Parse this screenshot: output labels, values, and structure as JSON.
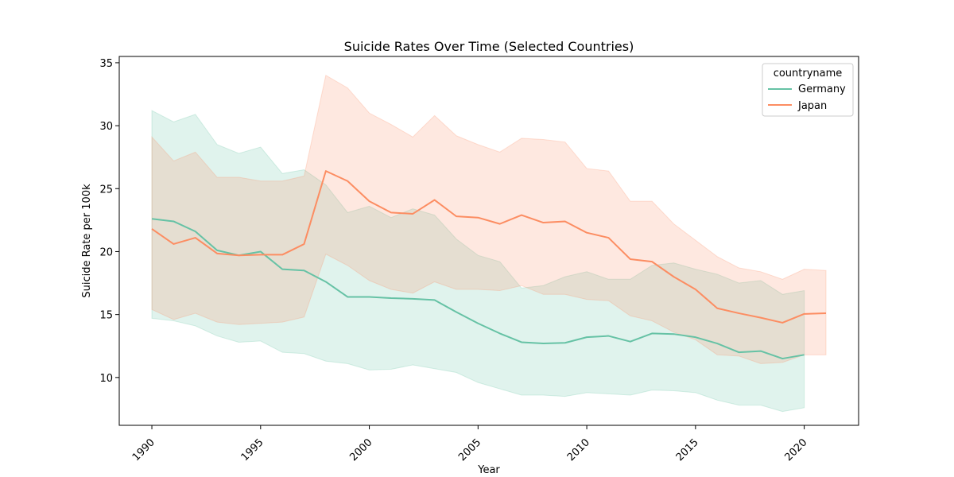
{
  "chart_data": {
    "type": "line",
    "title": "Suicide Rates Over Time (Selected Countries)",
    "xlabel": "Year",
    "ylabel": "Suicide Rate per 100k",
    "xlim": [
      1988.5,
      2022.5
    ],
    "ylim": [
      6.2,
      35.5
    ],
    "xticks": [
      1990,
      1995,
      2000,
      2005,
      2010,
      2015,
      2020
    ],
    "yticks": [
      10,
      15,
      20,
      25,
      30,
      35
    ],
    "legend": {
      "title": "countryname",
      "placement": "top-right"
    },
    "grid": false,
    "series": [
      {
        "name": "Germany",
        "color": "#66c2a5",
        "band_opacity": 0.2,
        "x": [
          1990,
          1991,
          1992,
          1993,
          1994,
          1995,
          1996,
          1997,
          1998,
          1999,
          2000,
          2001,
          2002,
          2003,
          2004,
          2005,
          2006,
          2007,
          2008,
          2009,
          2010,
          2011,
          2012,
          2013,
          2014,
          2015,
          2016,
          2017,
          2018,
          2019,
          2020
        ],
        "y": [
          22.6,
          22.4,
          21.6,
          20.1,
          19.7,
          20.0,
          18.6,
          18.5,
          17.6,
          16.4,
          16.4,
          16.3,
          16.25,
          16.15,
          15.2,
          14.3,
          13.5,
          12.8,
          12.7,
          12.75,
          13.2,
          13.3,
          12.85,
          13.5,
          13.45,
          13.2,
          12.7,
          12.0,
          12.1,
          11.5,
          11.8
        ],
        "lower": [
          14.7,
          14.5,
          14.1,
          13.3,
          12.8,
          12.9,
          12.0,
          11.9,
          11.3,
          11.1,
          10.6,
          10.65,
          11.0,
          10.7,
          10.4,
          9.6,
          9.1,
          8.6,
          8.6,
          8.5,
          8.8,
          8.7,
          8.6,
          9.0,
          8.95,
          8.8,
          8.2,
          7.8,
          7.8,
          7.3,
          7.6
        ],
        "upper": [
          31.2,
          30.3,
          30.9,
          28.5,
          27.8,
          28.3,
          26.2,
          26.5,
          25.3,
          23.1,
          23.6,
          22.7,
          23.4,
          22.9,
          21.0,
          19.7,
          19.2,
          17.1,
          17.3,
          18.0,
          18.4,
          17.8,
          17.8,
          18.9,
          19.1,
          18.6,
          18.2,
          17.5,
          17.7,
          16.6,
          16.9
        ]
      },
      {
        "name": "Japan",
        "color": "#fc8d62",
        "band_opacity": 0.2,
        "x": [
          1990,
          1991,
          1992,
          1993,
          1994,
          1995,
          1996,
          1997,
          1998,
          1999,
          2000,
          2001,
          2002,
          2003,
          2004,
          2005,
          2006,
          2007,
          2008,
          2009,
          2010,
          2011,
          2012,
          2013,
          2014,
          2015,
          2016,
          2017,
          2018,
          2019,
          2020,
          2021
        ],
        "y": [
          21.8,
          20.6,
          21.1,
          19.85,
          19.7,
          19.75,
          19.75,
          20.6,
          26.4,
          25.6,
          24.0,
          23.1,
          23.0,
          24.1,
          22.8,
          22.7,
          22.2,
          22.9,
          22.3,
          22.4,
          21.5,
          21.1,
          19.4,
          19.2,
          18.0,
          17.0,
          15.5,
          15.1,
          14.75,
          14.35,
          15.05,
          15.1
        ],
        "lower": [
          15.4,
          14.6,
          15.1,
          14.4,
          14.2,
          14.3,
          14.4,
          14.8,
          19.8,
          18.9,
          17.7,
          17.0,
          16.7,
          17.6,
          17.0,
          17.0,
          16.9,
          17.3,
          16.6,
          16.6,
          16.2,
          16.1,
          14.9,
          14.5,
          13.6,
          13.0,
          11.8,
          11.7,
          11.1,
          11.2,
          11.8,
          11.8
        ],
        "upper": [
          29.1,
          27.2,
          27.9,
          25.9,
          25.9,
          25.6,
          25.6,
          26.0,
          34.0,
          33.0,
          31.0,
          30.1,
          29.1,
          30.8,
          29.2,
          28.5,
          27.9,
          29.0,
          28.9,
          28.7,
          26.6,
          26.4,
          24.0,
          24.0,
          22.2,
          20.9,
          19.6,
          18.7,
          18.4,
          17.8,
          18.6,
          18.5
        ]
      }
    ]
  }
}
